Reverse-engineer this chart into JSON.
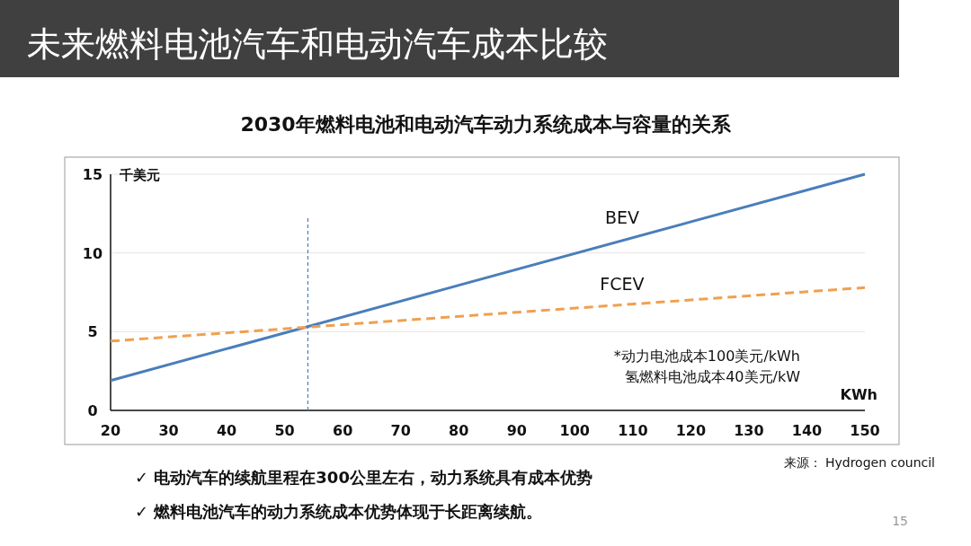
{
  "chart_data": {
    "type": "line",
    "title": "未来燃料电池汽车和电动汽车成本比较",
    "subtitle": "2030年燃料电池和电动汽车动力系统成本与容量的关系",
    "xlabel": "KWh",
    "ylabel": "千美元",
    "x": [
      20,
      150
    ],
    "series": [
      {
        "name": "BEV",
        "color": "#4a7ebb",
        "values": [
          1.9,
          15
        ],
        "line_style": "solid"
      },
      {
        "name": "FCEV",
        "color": "#f0a050",
        "values": [
          4.4,
          7.8
        ],
        "line_style": "dashed"
      }
    ],
    "xlim": [
      20,
      150
    ],
    "xticks": [
      20,
      30,
      40,
      50,
      60,
      70,
      80,
      90,
      100,
      110,
      120,
      130,
      140,
      150
    ],
    "ylim": [
      0,
      15
    ],
    "yticks": [
      0,
      5,
      10,
      15
    ],
    "grid": "y",
    "ref_lines": [
      {
        "axis": "x",
        "value": 54,
        "color": "#4a7ebb",
        "line_style": "dashed"
      }
    ],
    "annotations": [
      "*动力电池成本100美元/kWh",
      "氢燃料电池成本40美元/kW",
      "来源： Hydrogen council",
      "✓  电动汽车的续航里程在300公里左右，动力系统具有成本优势",
      "✓  燃料电池汽车的动力系统成本优势体现于长距离续航。",
      "15"
    ]
  }
}
